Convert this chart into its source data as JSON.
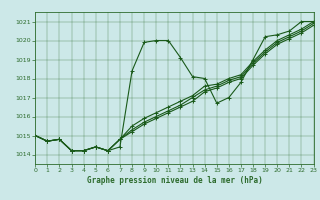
{
  "title": "Graphe pression niveau de la mer (hPa)",
  "bg_color": "#cce8e8",
  "grid_color": "#2d6b2d",
  "line_color": "#1a5a1a",
  "xlim": [
    0,
    23
  ],
  "ylim": [
    1013.5,
    1021.5
  ],
  "yticks": [
    1014,
    1015,
    1016,
    1017,
    1018,
    1019,
    1020,
    1021
  ],
  "xticks": [
    0,
    1,
    2,
    3,
    4,
    5,
    6,
    7,
    8,
    9,
    10,
    11,
    12,
    13,
    14,
    15,
    16,
    17,
    18,
    19,
    20,
    21,
    22,
    23
  ],
  "series0_x": [
    0,
    1,
    2,
    3,
    4,
    5,
    6,
    7,
    8,
    9,
    10,
    11,
    12,
    13,
    14,
    15,
    16,
    17,
    18,
    19,
    20,
    21,
    22,
    23
  ],
  "series0_y": [
    1015.0,
    1014.7,
    1014.8,
    1014.2,
    1014.2,
    1014.4,
    1014.2,
    1014.4,
    1018.4,
    1019.9,
    1020.0,
    1020.0,
    1019.1,
    1018.1,
    1018.0,
    1016.7,
    1017.0,
    1017.8,
    1019.0,
    1020.2,
    1020.3,
    1020.5,
    1021.0,
    1021.0
  ],
  "series1_x": [
    0,
    1,
    2,
    3,
    4,
    5,
    6,
    7,
    8,
    9,
    10,
    11,
    12,
    13,
    14,
    15,
    16,
    17,
    18,
    19,
    20,
    21,
    22,
    23
  ],
  "series1_y": [
    1015.0,
    1014.7,
    1014.8,
    1014.2,
    1014.2,
    1014.4,
    1014.2,
    1014.8,
    1015.5,
    1015.9,
    1016.2,
    1016.5,
    1016.8,
    1017.1,
    1017.6,
    1017.7,
    1018.0,
    1018.2,
    1018.9,
    1019.5,
    1020.0,
    1020.3,
    1020.6,
    1021.0
  ],
  "series2_x": [
    0,
    1,
    2,
    3,
    4,
    5,
    6,
    7,
    8,
    9,
    10,
    11,
    12,
    13,
    14,
    15,
    16,
    17,
    18,
    19,
    20,
    21,
    22,
    23
  ],
  "series2_y": [
    1015.0,
    1014.7,
    1014.8,
    1014.2,
    1014.2,
    1014.4,
    1014.2,
    1014.8,
    1015.3,
    1015.7,
    1016.0,
    1016.3,
    1016.6,
    1017.0,
    1017.4,
    1017.6,
    1017.9,
    1018.1,
    1018.8,
    1019.4,
    1019.9,
    1020.2,
    1020.5,
    1020.9
  ],
  "series3_x": [
    0,
    1,
    2,
    3,
    4,
    5,
    6,
    7,
    8,
    9,
    10,
    11,
    12,
    13,
    14,
    15,
    16,
    17,
    18,
    19,
    20,
    21,
    22,
    23
  ],
  "series3_y": [
    1015.0,
    1014.7,
    1014.8,
    1014.2,
    1014.2,
    1014.4,
    1014.2,
    1014.8,
    1015.2,
    1015.6,
    1015.9,
    1016.2,
    1016.5,
    1016.8,
    1017.3,
    1017.5,
    1017.8,
    1018.0,
    1018.7,
    1019.3,
    1019.8,
    1020.1,
    1020.4,
    1020.8
  ],
  "lw": 0.8,
  "ms": 2.5,
  "mew": 0.7,
  "tick_fontsize": 4.5,
  "xlabel_fontsize": 5.5
}
